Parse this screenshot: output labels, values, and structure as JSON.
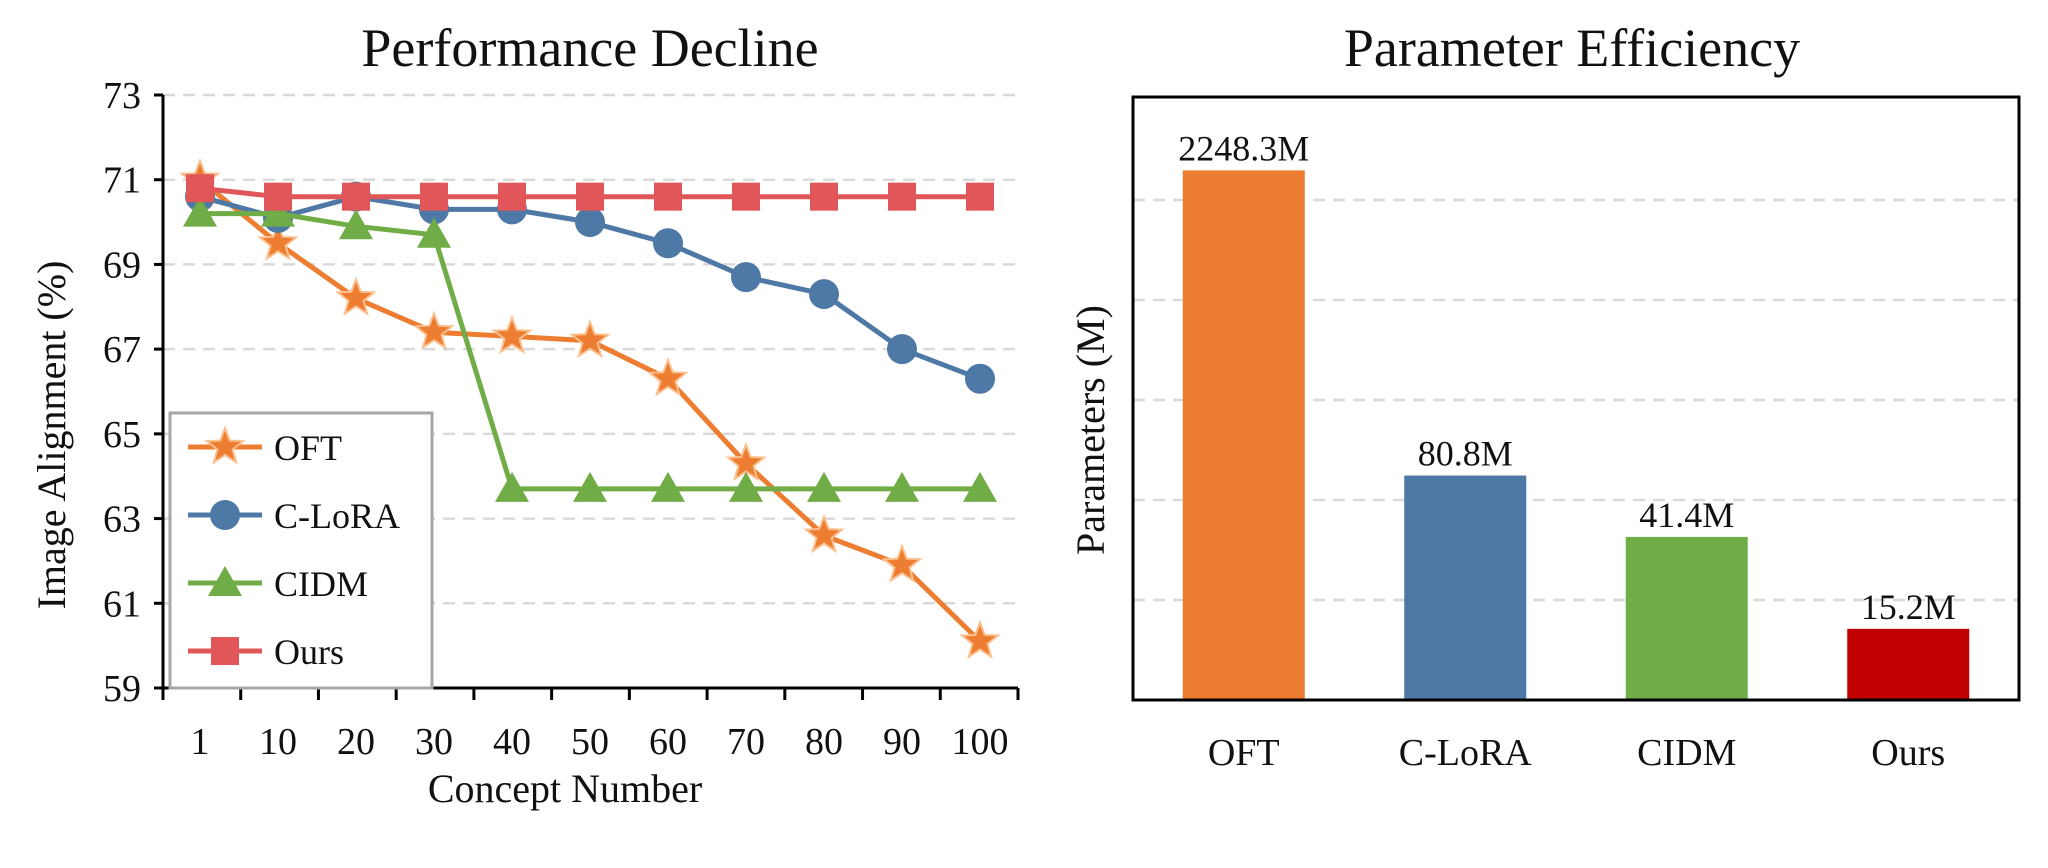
{
  "chart_data": [
    {
      "type": "line",
      "title": "Performance Decline",
      "xlabel": "Concept  Number",
      "ylabel": "Image Alignment (%)",
      "categories": [
        "1",
        "10",
        "20",
        "30",
        "40",
        "50",
        "60",
        "70",
        "80",
        "90",
        "100"
      ],
      "ylim": [
        59,
        73
      ],
      "yticks": [
        59,
        61,
        63,
        65,
        67,
        69,
        71,
        73
      ],
      "grid": "horizontal-dashed",
      "legend": "bottom-left",
      "series": [
        {
          "name": "OFT",
          "color": "#ED7D31",
          "marker": "star",
          "values": [
            71.0,
            69.5,
            68.2,
            67.4,
            67.3,
            67.2,
            66.3,
            64.3,
            62.6,
            61.9,
            60.1
          ]
        },
        {
          "name": "C-LoRA",
          "color": "#4E78A6",
          "marker": "circle",
          "values": [
            70.6,
            70.1,
            70.6,
            70.3,
            70.3,
            70.0,
            69.5,
            68.7,
            68.3,
            67.0,
            66.3
          ]
        },
        {
          "name": "CIDM",
          "color": "#70AD47",
          "marker": "triangle",
          "values": [
            70.2,
            70.2,
            69.9,
            69.7,
            63.7,
            63.7,
            63.7,
            63.7,
            63.7,
            63.7,
            63.7
          ]
        },
        {
          "name": "Ours",
          "color": "#E15759",
          "marker": "square",
          "values": [
            70.8,
            70.6,
            70.6,
            70.6,
            70.6,
            70.6,
            70.6,
            70.6,
            70.6,
            70.6,
            70.6
          ]
        }
      ]
    },
    {
      "type": "bar",
      "title": "Parameter Efficiency",
      "xlabel": "",
      "ylabel": "Parameters (M)",
      "scale": "log",
      "ylim": [
        7,
        5000
      ],
      "grid": "horizontal-dashed",
      "categories": [
        "OFT",
        "C-LoRA",
        "CIDM",
        "Ours"
      ],
      "values": [
        2248.3,
        80.8,
        41.4,
        15.2
      ],
      "data_labels": [
        "2248.3M",
        "80.8M",
        "41.4M",
        "15.2M"
      ],
      "colors": [
        "#ED7D31",
        "#4E78A6",
        "#70AD47",
        "#C00000"
      ]
    }
  ]
}
